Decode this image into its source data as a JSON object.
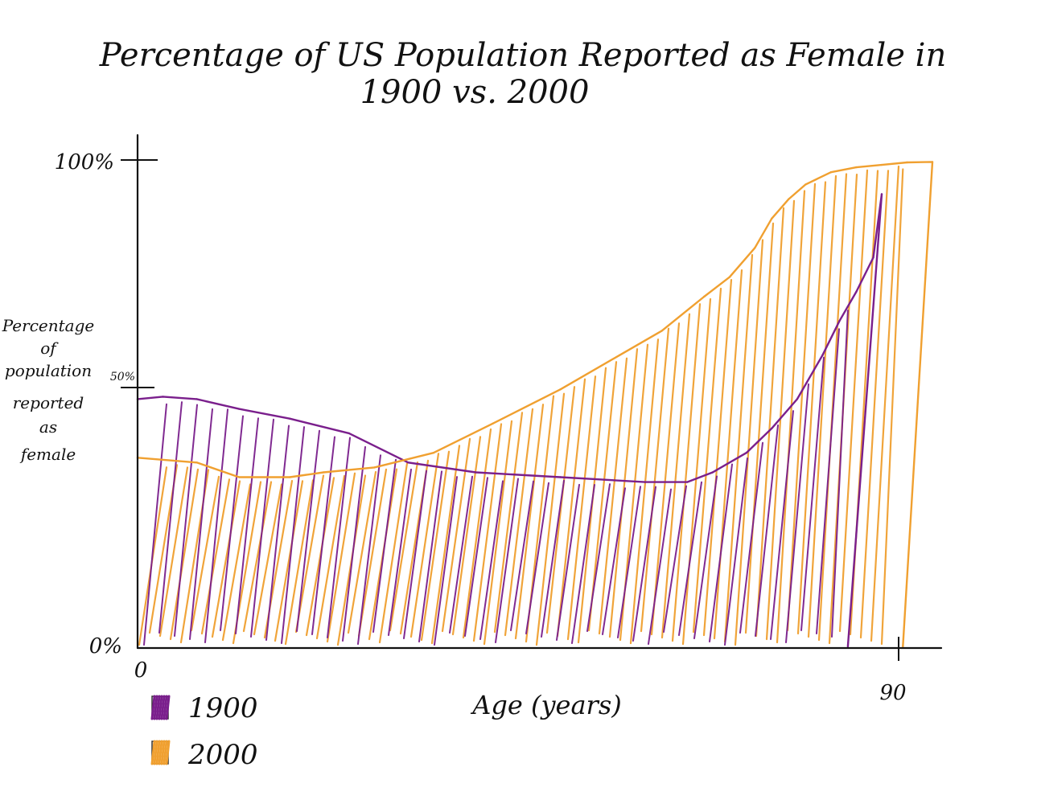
{
  "chart_data": {
    "type": "area",
    "title": "Percentage of US Population Reported as Female in",
    "subtitle": "1900 vs. 2000",
    "xlabel": "Age (years)",
    "ylabel": [
      "Percentage",
      "of",
      "population",
      "reported",
      "as",
      "female"
    ],
    "x_ticks": [
      {
        "value": 0,
        "label": "0"
      },
      {
        "value": 90,
        "label": "90"
      }
    ],
    "y_ticks": [
      {
        "value": 0,
        "label": "0%"
      },
      {
        "value": 50,
        "label": "50%"
      },
      {
        "value": 100,
        "label": "100%"
      }
    ],
    "xlim": [
      0,
      95
    ],
    "ylim": [
      0,
      100
    ],
    "grid": false,
    "legend_position": "bottom-left",
    "series": [
      {
        "name": "1900",
        "color": "#7a1f8c",
        "x": [
          0,
          3,
          7,
          12,
          18,
          25,
          32,
          40,
          50,
          60,
          65,
          68,
          72,
          75,
          78,
          81,
          83,
          85,
          87,
          88
        ],
        "y": [
          51,
          51.5,
          51,
          49,
          47,
          44,
          38,
          36,
          35,
          34,
          34,
          36,
          40,
          45,
          51,
          60,
          67,
          73,
          80,
          93
        ],
        "x_end": 84
      },
      {
        "name": "2000",
        "color": "#f0a030",
        "x": [
          0,
          7,
          12,
          18,
          22,
          28,
          35,
          42,
          50,
          57,
          62,
          67,
          70,
          73,
          75,
          77,
          79,
          82,
          85,
          88,
          91,
          94
        ],
        "y": [
          39,
          38,
          35,
          35,
          36,
          37,
          40,
          46,
          53,
          60,
          65,
          72,
          76,
          82,
          88,
          92,
          95,
          97.5,
          98.5,
          99,
          99.5,
          99.6
        ],
        "x_end": 90.5
      }
    ]
  }
}
